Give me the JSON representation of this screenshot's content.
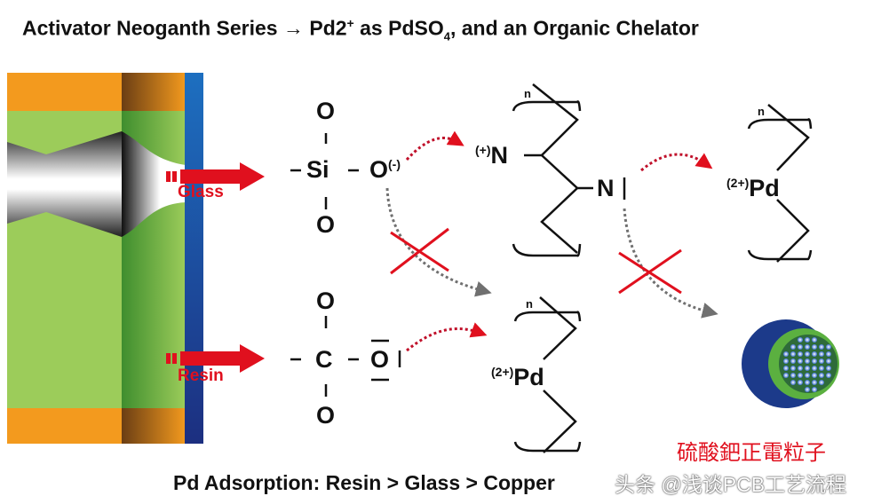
{
  "title": {
    "main": "Activator Neoganth Series → Pd2",
    "sup": "+",
    "mid": " as PdSO",
    "sub": "4",
    "end": ", and an Organic Chelator"
  },
  "labels": {
    "glass": "Glass",
    "resin": "Resin"
  },
  "chem": {
    "o": "O",
    "si": "Si",
    "c": "C",
    "n": "N",
    "pd": "Pd",
    "neg": "(-)",
    "pos": "(+)",
    "pd_charge": "(2+)",
    "n_sub": "n"
  },
  "caption": "Pd Adsorption: Resin > Glass > Copper",
  "particle_label": "硫酸鈀正電粒子",
  "watermark": "头条 @浅谈PCB工艺流程",
  "colors": {
    "orange": "#f39a1e",
    "green": "#9ccc5a",
    "blue": "#1b4fa0",
    "red": "#e0101e",
    "gray": "#707070"
  }
}
